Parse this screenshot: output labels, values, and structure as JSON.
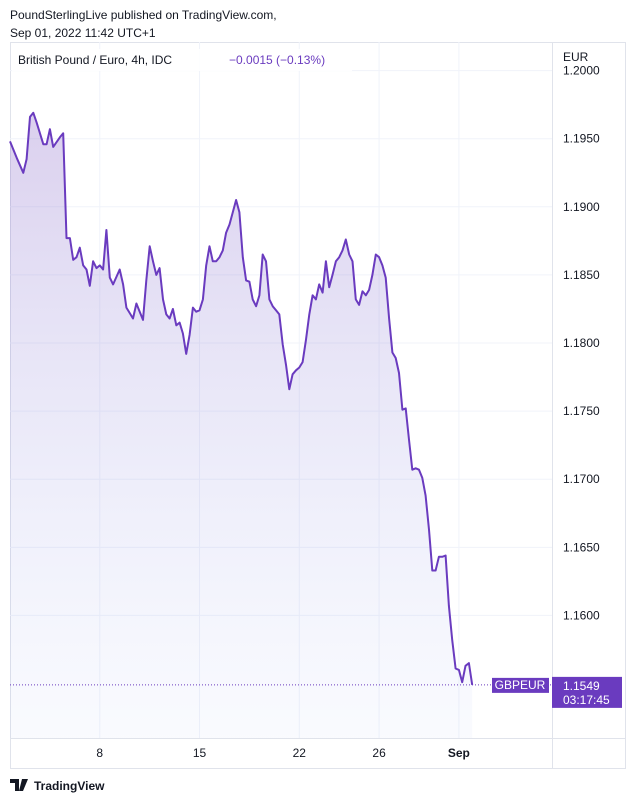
{
  "header": {
    "line1": "PoundSterlingLive published on TradingView.com,",
    "line2": "Sep 01, 2022 11:42 UTC+1"
  },
  "footer": {
    "brand": "TradingView"
  },
  "chart_data": {
    "type": "line",
    "currency": "EUR",
    "symbol": "GBPEUR",
    "change": "−0.0015 (−0.13%)",
    "countdown": "03:17:45",
    "x": [
      0,
      2,
      4,
      5,
      6,
      7,
      8,
      10,
      11,
      12,
      13,
      15,
      16,
      17,
      18,
      19,
      20,
      21,
      22,
      23,
      24,
      25,
      26,
      27,
      28,
      29,
      30,
      31,
      33,
      34,
      35,
      36,
      37,
      38,
      39,
      40,
      41,
      42,
      43,
      44,
      45,
      46,
      47,
      48,
      49,
      50,
      51,
      52,
      53,
      54,
      55,
      56,
      57,
      58,
      59,
      60,
      61,
      62,
      63,
      64,
      65,
      66,
      67,
      68,
      69,
      70,
      71,
      72,
      73,
      74,
      75,
      76,
      77,
      78,
      79,
      80,
      81,
      82,
      83,
      84,
      85,
      86,
      87,
      88,
      89,
      90,
      91,
      92,
      93,
      94,
      95,
      96,
      97,
      98,
      99,
      100,
      101,
      102,
      103,
      104,
      105,
      106,
      107,
      108,
      109,
      110,
      111,
      112,
      113,
      114,
      115,
      116,
      117,
      118,
      119,
      120,
      121,
      122,
      123,
      124,
      125,
      126,
      127,
      128,
      129,
      130,
      131,
      132,
      133,
      134,
      135,
      136,
      137,
      138,
      139
    ],
    "series": [
      {
        "name": "British Pound / Euro, 4h, IDC",
        "color": "#6a3bbf",
        "values": [
          1.1948,
          1.1936,
          1.1925,
          1.1935,
          1.1966,
          1.1969,
          1.1962,
          1.1946,
          1.1946,
          1.1957,
          1.1944,
          1.1951,
          1.1954,
          1.1877,
          1.1877,
          1.1861,
          1.1863,
          1.187,
          1.1857,
          1.1854,
          1.1842,
          1.186,
          1.1855,
          1.1857,
          1.1854,
          1.1883,
          1.1848,
          1.1843,
          1.1854,
          1.1843,
          1.1826,
          1.1822,
          1.1818,
          1.1829,
          1.1823,
          1.1817,
          1.1846,
          1.1871,
          1.186,
          1.185,
          1.1855,
          1.1832,
          1.1821,
          1.1818,
          1.1825,
          1.1813,
          1.1815,
          1.1807,
          1.1792,
          1.1806,
          1.1826,
          1.1823,
          1.1824,
          1.1832,
          1.1857,
          1.1871,
          1.186,
          1.186,
          1.1863,
          1.1868,
          1.1881,
          1.1887,
          1.1896,
          1.1905,
          1.1896,
          1.1863,
          1.1846,
          1.1845,
          1.1832,
          1.1827,
          1.1835,
          1.1865,
          1.186,
          1.1832,
          1.1827,
          1.1824,
          1.1821,
          1.1799,
          1.1784,
          1.1766,
          1.1777,
          1.178,
          1.1782,
          1.1786,
          1.1802,
          1.1821,
          1.1835,
          1.1832,
          1.1843,
          1.1837,
          1.186,
          1.1841,
          1.185,
          1.186,
          1.1863,
          1.1868,
          1.1876,
          1.1865,
          1.186,
          1.1832,
          1.1828,
          1.1838,
          1.1835,
          1.1839,
          1.185,
          1.1865,
          1.1863,
          1.1857,
          1.1848,
          1.1818,
          1.1793,
          1.1789,
          1.1778,
          1.1751,
          1.1752,
          1.1729,
          1.1707,
          1.1708,
          1.1707,
          1.1701,
          1.1688,
          1.1663,
          1.1633,
          1.1633,
          1.1643,
          1.1643,
          1.1644,
          1.1607,
          1.1582,
          1.1561,
          1.156,
          1.1551,
          1.1563,
          1.1565,
          1.1549
        ]
      }
    ],
    "xlim": [
      0,
      163
    ],
    "xticks": [
      {
        "value": 27,
        "label": "8"
      },
      {
        "value": 57,
        "label": "15"
      },
      {
        "value": 87,
        "label": "22"
      },
      {
        "value": 111,
        "label": "26"
      },
      {
        "value": 135,
        "label": "Sep"
      }
    ],
    "ylim": [
      1.151,
      1.2021
    ],
    "yticks": [
      {
        "value": 1.16,
        "label": "1.1600"
      },
      {
        "value": 1.165,
        "label": "1.1650"
      },
      {
        "value": 1.17,
        "label": "1.1700"
      },
      {
        "value": 1.175,
        "label": "1.1750"
      },
      {
        "value": 1.18,
        "label": "1.1800"
      },
      {
        "value": 1.185,
        "label": "1.1850"
      },
      {
        "value": 1.19,
        "label": "1.1900"
      },
      {
        "value": 1.195,
        "label": "1.1950"
      },
      {
        "value": 1.2,
        "label": "1.2000"
      }
    ],
    "grid": true
  }
}
